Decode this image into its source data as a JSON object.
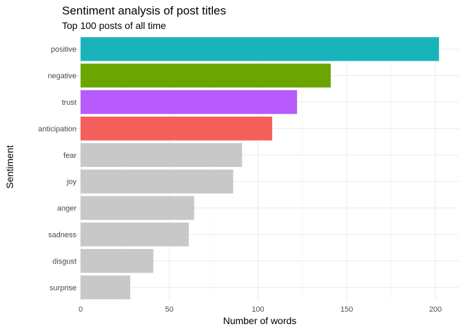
{
  "chart_data": {
    "type": "bar",
    "orientation": "horizontal",
    "title": "Sentiment analysis of post titles",
    "subtitle": "Top 100 posts of all time",
    "xlabel": "Number of words",
    "ylabel": "Sentiment",
    "xlim": [
      0,
      202
    ],
    "xticks": [
      0,
      50,
      100,
      150,
      200
    ],
    "grid": true,
    "legend": "none",
    "categories": [
      "positive",
      "negative",
      "trust",
      "anticipation",
      "fear",
      "joy",
      "anger",
      "sadness",
      "disgust",
      "surprise"
    ],
    "values": [
      202,
      141,
      122,
      108,
      91,
      86,
      64,
      61,
      41,
      28
    ],
    "colors": [
      "#19b4bb",
      "#6aa502",
      "#b75bfc",
      "#f45f5c",
      "#c8c8c8",
      "#c8c8c8",
      "#c8c8c8",
      "#c8c8c8",
      "#c8c8c8",
      "#c8c8c8"
    ]
  }
}
